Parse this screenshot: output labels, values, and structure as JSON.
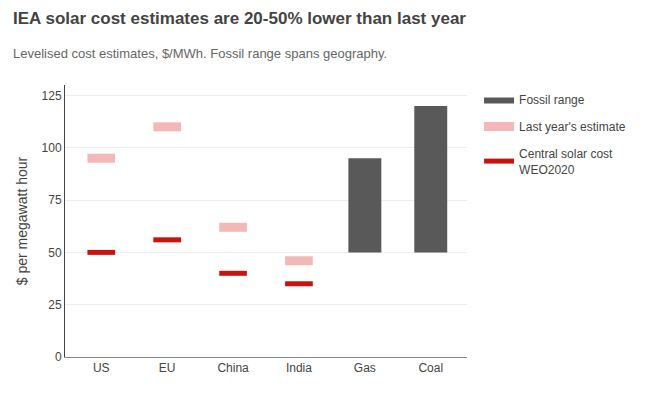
{
  "chart_data": {
    "type": "bar",
    "title": "IEA solar cost estimates are 20-50% lower than last year",
    "subtitle": "Levelised cost estimates, $/MWh. Fossil range spans geography.",
    "ylabel": "$ per megawatt hour",
    "categories": [
      "US",
      "EU",
      "China",
      "India",
      "Gas",
      "Coal"
    ],
    "series": [
      {
        "name": "Fossil range",
        "type": "bar",
        "color": "#595959",
        "low": [
          null,
          null,
          null,
          null,
          50,
          50
        ],
        "high": [
          null,
          null,
          null,
          null,
          95,
          120
        ]
      },
      {
        "name": "Last year's estimate",
        "type": "line",
        "color": "#f5b8b8",
        "values": [
          95,
          110,
          62,
          46,
          null,
          null
        ]
      },
      {
        "name": "Central solar cost\nWEO2020",
        "type": "line",
        "color": "#cc1111",
        "values": [
          50,
          56,
          40,
          35,
          null,
          null
        ]
      }
    ],
    "ylim": [
      0,
      130
    ],
    "yticks": [
      0,
      25,
      50,
      75,
      100,
      125
    ],
    "grid": true,
    "legend": "right"
  }
}
